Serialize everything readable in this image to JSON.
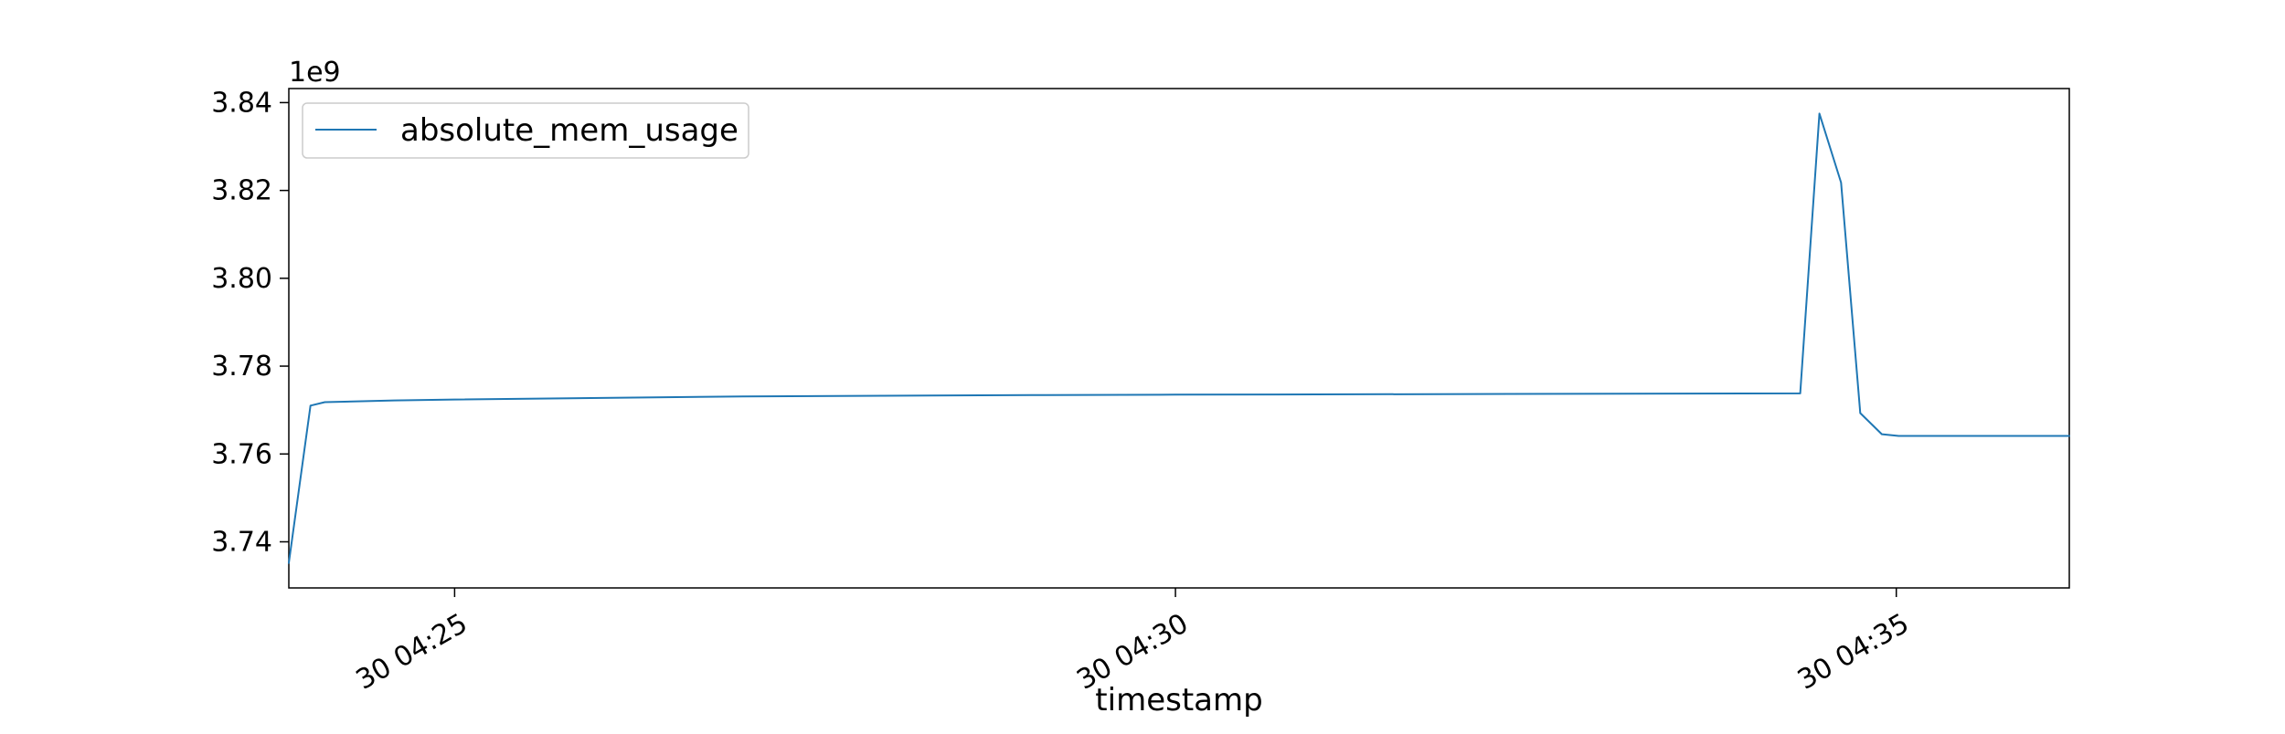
{
  "chart_data": {
    "type": "line",
    "title": "",
    "xlabel": "timestamp",
    "ylabel": "",
    "y_offset_label": "1e9",
    "grid": false,
    "legend_position": "top-left",
    "xlim": [
      "04:23:51",
      "04:36:12"
    ],
    "ylim": [
      3.7295,
      3.8432
    ],
    "x_ticks": [
      "04:25:00",
      "04:30:00",
      "04:35:00"
    ],
    "x_tick_labels": [
      "30 04:25",
      "30 04:30",
      "30 04:35"
    ],
    "y_ticks": [
      3.74,
      3.76,
      3.78,
      3.8,
      3.82,
      3.84
    ],
    "y_tick_labels": [
      "3.74",
      "3.76",
      "3.78",
      "3.80",
      "3.82",
      "3.84"
    ],
    "series": [
      {
        "name": "absolute_mem_usage",
        "color": "#1f77b4",
        "x": [
          "04:23:51",
          "04:24:00",
          "04:24:06",
          "04:24:35",
          "04:25:00",
          "04:27:00",
          "04:29:00",
          "04:30:00",
          "04:34:20",
          "04:34:28",
          "04:34:37",
          "04:34:45",
          "04:34:54",
          "04:35:01",
          "04:36:12"
        ],
        "y": [
          3.7352,
          3.771,
          3.7718,
          3.7722,
          3.7724,
          3.7731,
          3.7734,
          3.7735,
          3.7738,
          3.8375,
          3.8218,
          3.7693,
          3.7645,
          3.7641,
          3.7641
        ]
      }
    ]
  }
}
